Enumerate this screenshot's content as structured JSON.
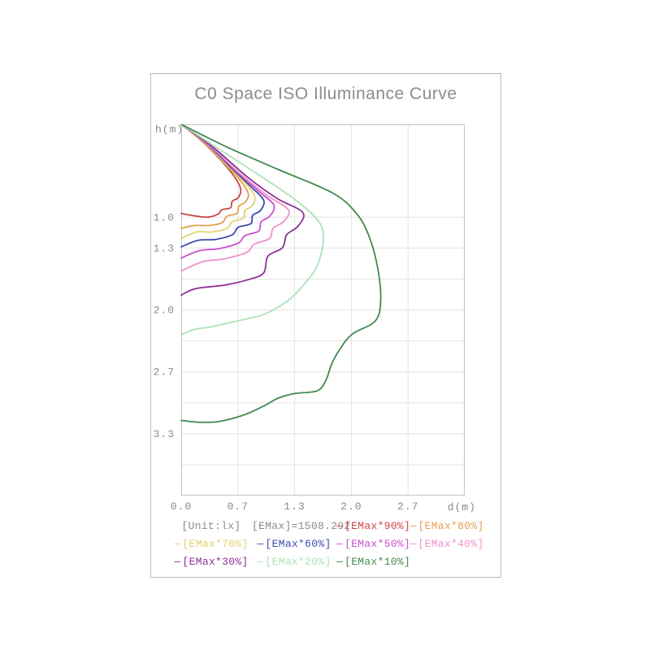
{
  "title": "C0 Space ISO Illuminance Curve",
  "axis": {
    "y_label": "h(m)",
    "x_label": "d(m)"
  },
  "colors": {
    "frame_border": "#b9b9b9",
    "plot_border": "#c4c4c4",
    "gridline": "#e3e3e3",
    "text_gray": "#8a8a8a"
  },
  "legend": {
    "dash_glyph": "—",
    "rows": [
      [
        {
          "text": "[Unit:lx]",
          "color": "#8a8a8a",
          "dash": false
        },
        {
          "text": "[EMax]=1508.292",
          "color": "#8a8a8a",
          "dash": false
        },
        {
          "text": "[EMax*90%]",
          "color": "#c84642",
          "dash": true
        },
        {
          "text": "[EMax*80%]",
          "color": "#e2a04f",
          "dash": true
        }
      ],
      [
        {
          "text": "[EMax*70%]",
          "color": "#e2d26c",
          "dash": true
        },
        {
          "text": "[EMax*60%]",
          "color": "#3c49ae",
          "dash": true
        },
        {
          "text": "[EMax*50%]",
          "color": "#c94fd0",
          "dash": true
        },
        {
          "text": "[EMax*40%]",
          "color": "#ef92c8",
          "dash": true
        }
      ],
      [
        {
          "text": "[EMax*30%]",
          "color": "#8b2f96",
          "dash": true
        },
        {
          "text": "[EMax*20%]",
          "color": "#ade2b7",
          "dash": true
        },
        {
          "text": "[EMax*10%]",
          "color": "#41894f",
          "dash": true
        }
      ]
    ]
  },
  "chart_data": {
    "type": "line",
    "subtype": "iso-illuminance-contours",
    "title": "C0 Space ISO Illuminance Curve",
    "xlabel": "d(m)",
    "ylabel": "h(m)",
    "unit": "lx",
    "emax_lx": 1508.292,
    "xlim": [
      0,
      3.333
    ],
    "ylim": [
      0,
      4.0
    ],
    "y_inverted_down": true,
    "grid": true,
    "x_gridlines": [
      0.667,
      1.333,
      2.0,
      2.667
    ],
    "y_gridlines": [
      1.0,
      1.333,
      1.667,
      2.0,
      2.333,
      2.667,
      3.0,
      3.333,
      3.667
    ],
    "x_ticks": [
      {
        "v": 0.0,
        "label": "0.0"
      },
      {
        "v": 0.667,
        "label": "0.7"
      },
      {
        "v": 1.333,
        "label": "1.3"
      },
      {
        "v": 2.0,
        "label": "2.0"
      },
      {
        "v": 2.667,
        "label": "2.7"
      }
    ],
    "y_ticks": [
      {
        "v": 1.0,
        "label": "1.0"
      },
      {
        "v": 1.333,
        "label": "1.3"
      },
      {
        "v": 2.0,
        "label": "2.0"
      },
      {
        "v": 2.667,
        "label": "2.7"
      },
      {
        "v": 3.333,
        "label": "3.3"
      }
    ],
    "legend_position": "bottom",
    "series": [
      {
        "name": "[EMax*90%]",
        "percent": 90,
        "color": "#c84642",
        "points": [
          [
            0,
            0
          ],
          [
            0.22,
            0.16
          ],
          [
            0.45,
            0.37
          ],
          [
            0.63,
            0.57
          ],
          [
            0.7,
            0.7
          ],
          [
            0.67,
            0.79
          ],
          [
            0.6,
            0.83
          ],
          [
            0.58,
            0.9
          ],
          [
            0.48,
            0.92
          ],
          [
            0.43,
            0.97
          ],
          [
            0.3,
            1.0
          ],
          [
            0.15,
            0.985
          ],
          [
            0,
            0.96
          ]
        ]
      },
      {
        "name": "[EMax*80%]",
        "percent": 80,
        "color": "#e2a04f",
        "points": [
          [
            0,
            0
          ],
          [
            0.24,
            0.17
          ],
          [
            0.49,
            0.4
          ],
          [
            0.7,
            0.61
          ],
          [
            0.79,
            0.75
          ],
          [
            0.75,
            0.84
          ],
          [
            0.68,
            0.88
          ],
          [
            0.655,
            0.96
          ],
          [
            0.54,
            0.99
          ],
          [
            0.48,
            1.06
          ],
          [
            0.33,
            1.09
          ],
          [
            0.16,
            1.09
          ],
          [
            0,
            1.12
          ]
        ]
      },
      {
        "name": "[EMax*70%]",
        "percent": 70,
        "color": "#e2d26c",
        "points": [
          [
            0,
            0
          ],
          [
            0.26,
            0.18
          ],
          [
            0.53,
            0.43
          ],
          [
            0.76,
            0.64
          ],
          [
            0.865,
            0.78
          ],
          [
            0.83,
            0.88
          ],
          [
            0.75,
            0.93
          ],
          [
            0.73,
            1.01
          ],
          [
            0.6,
            1.05
          ],
          [
            0.54,
            1.12
          ],
          [
            0.36,
            1.16
          ],
          [
            0.18,
            1.16
          ],
          [
            0,
            1.23
          ]
        ]
      },
      {
        "name": "[EMax*60%]",
        "percent": 60,
        "color": "#3c49ae",
        "points": [
          [
            0,
            0
          ],
          [
            0.28,
            0.19
          ],
          [
            0.58,
            0.46
          ],
          [
            0.83,
            0.68
          ],
          [
            0.97,
            0.82
          ],
          [
            0.93,
            0.93
          ],
          [
            0.84,
            0.98
          ],
          [
            0.82,
            1.07
          ],
          [
            0.67,
            1.11
          ],
          [
            0.6,
            1.19
          ],
          [
            0.4,
            1.24
          ],
          [
            0.2,
            1.25
          ],
          [
            0,
            1.32
          ]
        ]
      },
      {
        "name": "[EMax*50%]",
        "percent": 50,
        "color": "#c94fd0",
        "points": [
          [
            0,
            0
          ],
          [
            0.31,
            0.21
          ],
          [
            0.63,
            0.49
          ],
          [
            0.91,
            0.72
          ],
          [
            1.09,
            0.87
          ],
          [
            1.04,
            0.99
          ],
          [
            0.94,
            1.05
          ],
          [
            0.91,
            1.15
          ],
          [
            0.75,
            1.2
          ],
          [
            0.67,
            1.28
          ],
          [
            0.44,
            1.34
          ],
          [
            0.22,
            1.36
          ],
          [
            0,
            1.44
          ]
        ]
      },
      {
        "name": "[EMax*40%]",
        "percent": 40,
        "color": "#ef92c8",
        "points": [
          [
            0,
            0
          ],
          [
            0.34,
            0.23
          ],
          [
            0.69,
            0.53
          ],
          [
            1.0,
            0.76
          ],
          [
            1.26,
            0.92
          ],
          [
            1.2,
            1.05
          ],
          [
            1.08,
            1.12
          ],
          [
            1.04,
            1.23
          ],
          [
            0.86,
            1.29
          ],
          [
            0.77,
            1.38
          ],
          [
            0.5,
            1.45
          ],
          [
            0.25,
            1.48
          ],
          [
            0,
            1.58
          ]
        ]
      },
      {
        "name": "[EMax*30%]",
        "percent": 30,
        "color": "#8b2f96",
        "points": [
          [
            0,
            0
          ],
          [
            0.38,
            0.25
          ],
          [
            0.78,
            0.57
          ],
          [
            1.13,
            0.8
          ],
          [
            1.43,
            0.95
          ],
          [
            1.37,
            1.1
          ],
          [
            1.24,
            1.19
          ],
          [
            1.19,
            1.33
          ],
          [
            1.02,
            1.42
          ],
          [
            0.97,
            1.6
          ],
          [
            0.8,
            1.67
          ],
          [
            0.52,
            1.73
          ],
          [
            0.17,
            1.77
          ],
          [
            0,
            1.84
          ]
        ]
      },
      {
        "name": "[EMax*20%]",
        "percent": 20,
        "color": "#ade2b7",
        "points": [
          [
            0,
            0
          ],
          [
            0.45,
            0.27
          ],
          [
            0.92,
            0.55
          ],
          [
            1.35,
            0.82
          ],
          [
            1.62,
            1.05
          ],
          [
            1.67,
            1.25
          ],
          [
            1.6,
            1.52
          ],
          [
            1.45,
            1.72
          ],
          [
            1.28,
            1.88
          ],
          [
            1.12,
            1.98
          ],
          [
            0.93,
            2.06
          ],
          [
            0.6,
            2.13
          ],
          [
            0.36,
            2.18
          ],
          [
            0.15,
            2.21
          ],
          [
            0,
            2.27
          ]
        ]
      },
      {
        "name": "[EMax*10%]",
        "percent": 10,
        "color": "#41894f",
        "points": [
          [
            0,
            0
          ],
          [
            0.55,
            0.25
          ],
          [
            1.15,
            0.49
          ],
          [
            1.78,
            0.74
          ],
          [
            2.06,
            0.96
          ],
          [
            2.21,
            1.21
          ],
          [
            2.31,
            1.55
          ],
          [
            2.345,
            1.9
          ],
          [
            2.28,
            2.12
          ],
          [
            2.01,
            2.26
          ],
          [
            1.86,
            2.43
          ],
          [
            1.77,
            2.58
          ],
          [
            1.7,
            2.76
          ],
          [
            1.6,
            2.87
          ],
          [
            1.34,
            2.9
          ],
          [
            1.14,
            2.95
          ],
          [
            0.98,
            3.03
          ],
          [
            0.74,
            3.13
          ],
          [
            0.45,
            3.2
          ],
          [
            0.22,
            3.21
          ],
          [
            0,
            3.19
          ]
        ]
      }
    ]
  }
}
